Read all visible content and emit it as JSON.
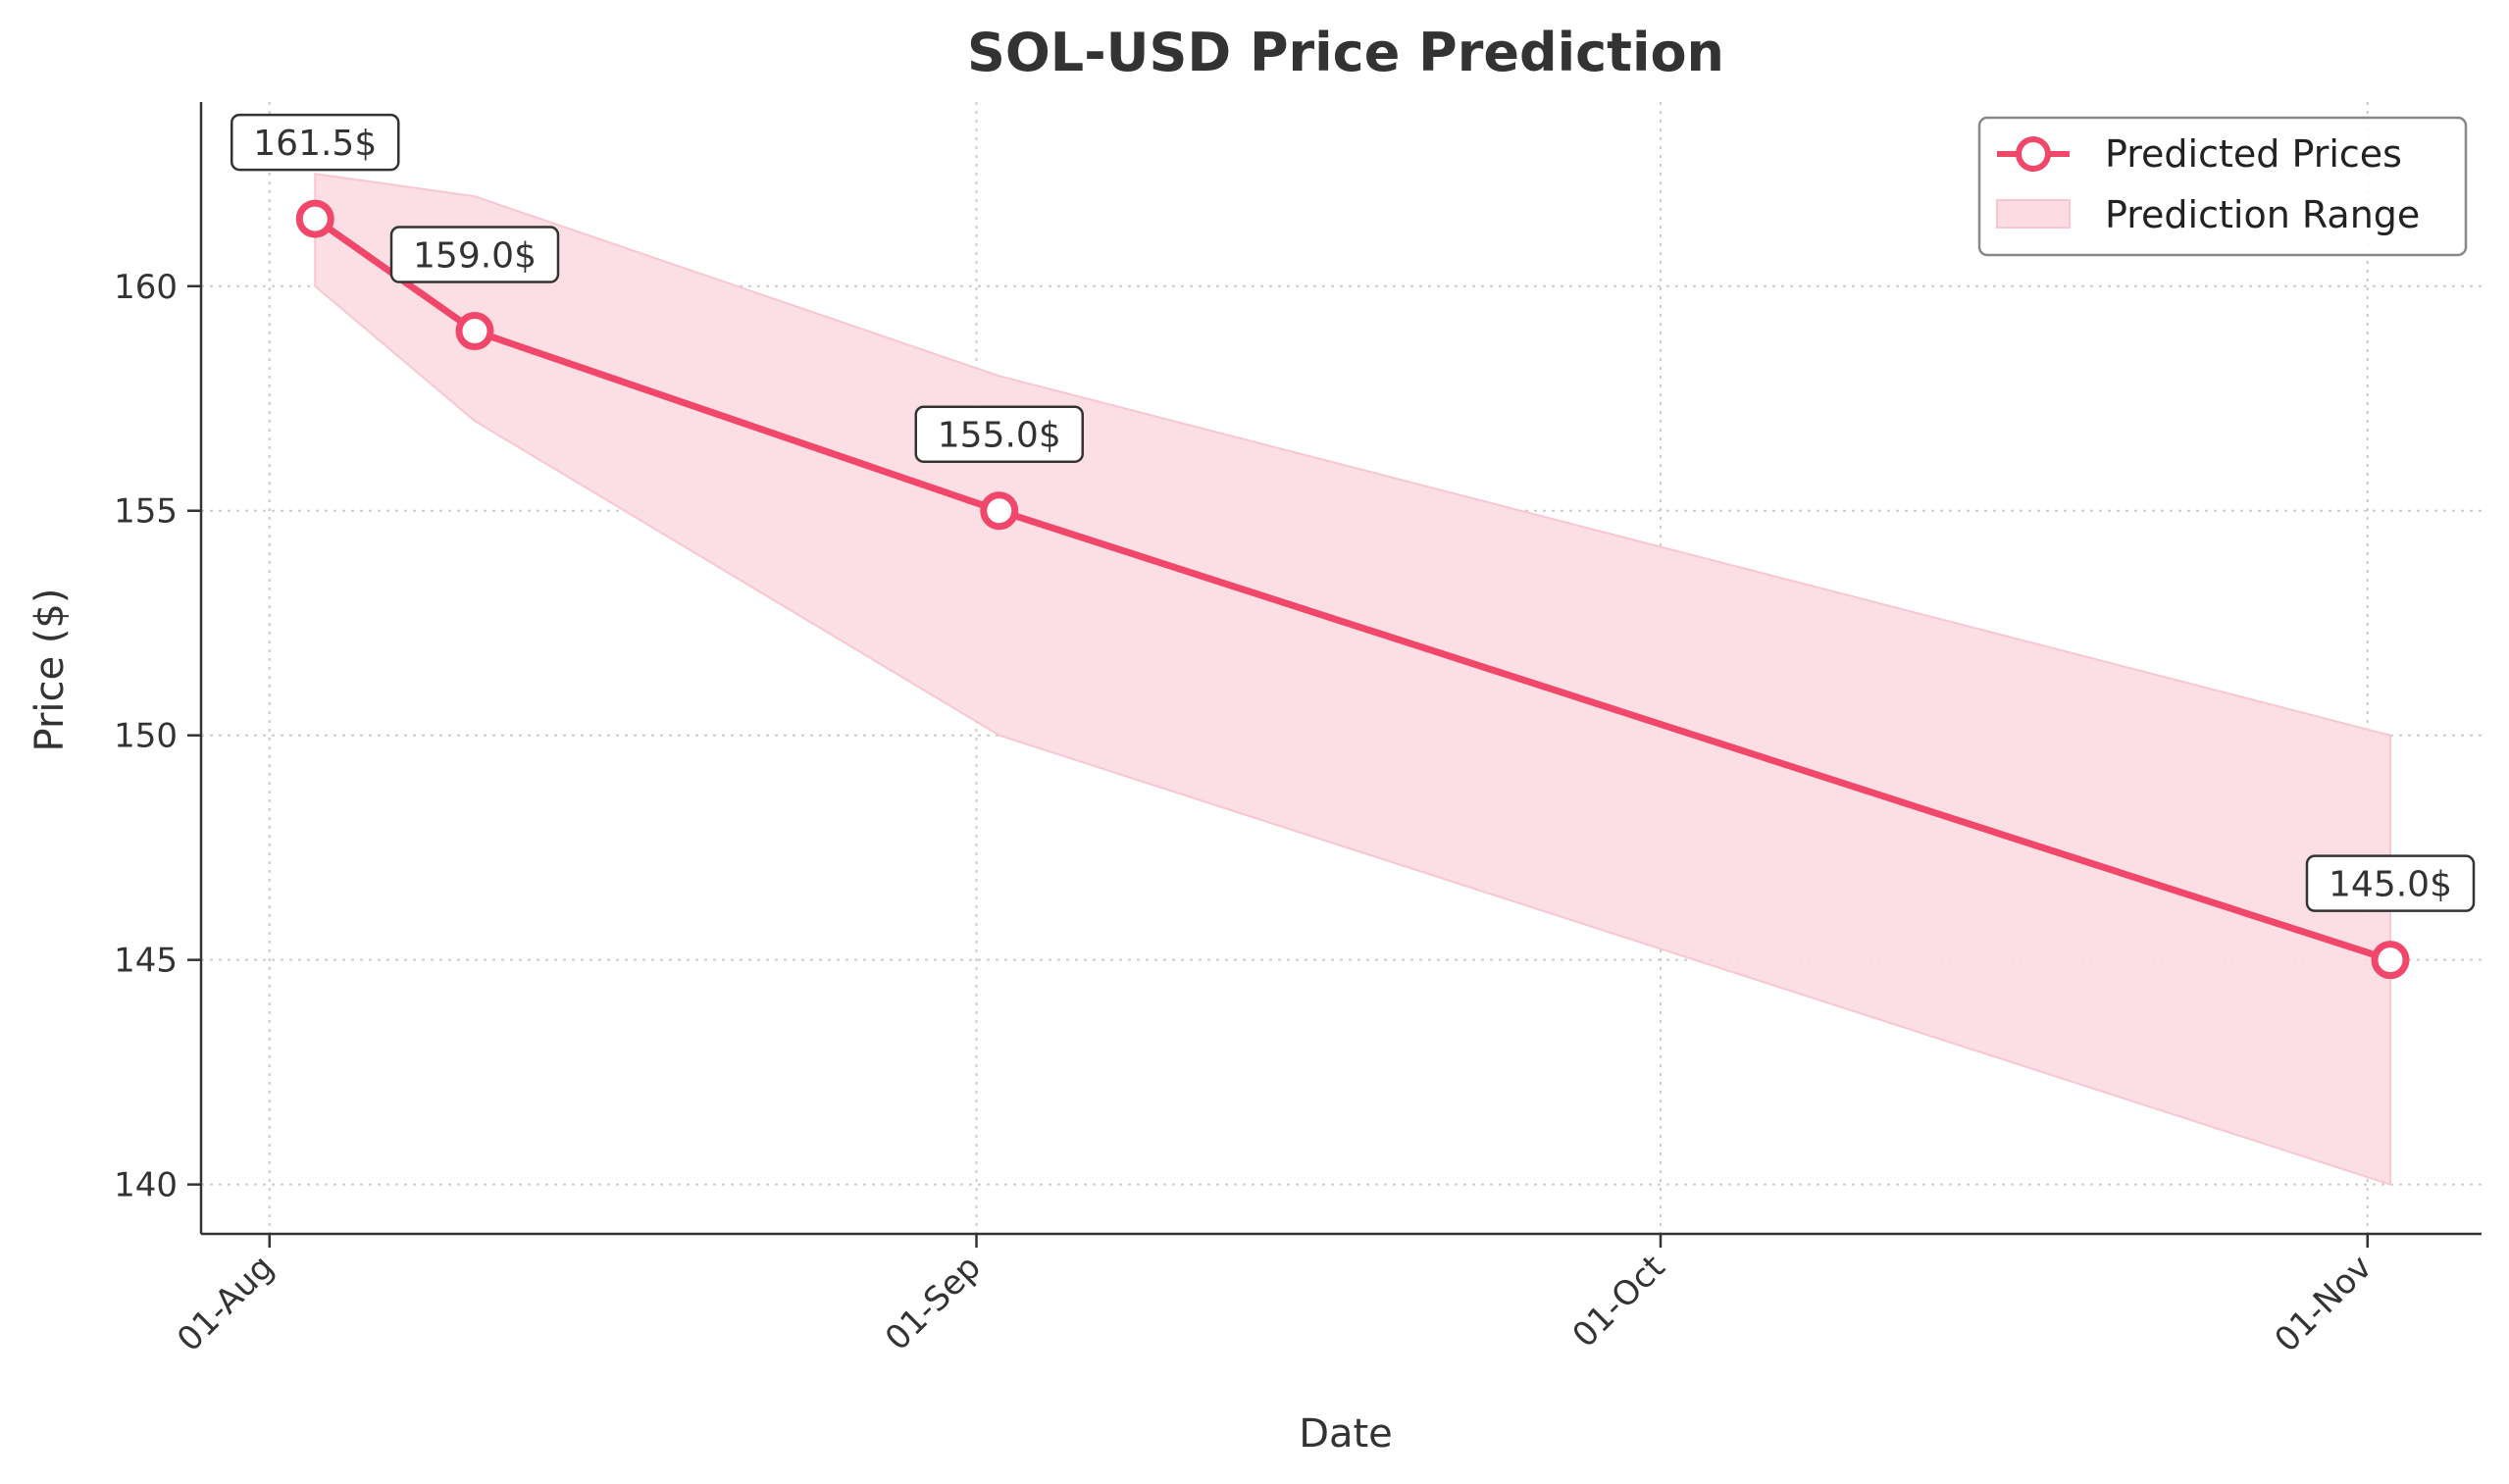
{
  "chart_data": {
    "type": "line",
    "title": "SOL-USD Price Prediction",
    "xlabel": "Date",
    "ylabel": "Price ($)",
    "x_ticks": [
      {
        "date": "2024-08-01",
        "label": "01-Aug"
      },
      {
        "date": "2024-09-01",
        "label": "01-Sep"
      },
      {
        "date": "2024-10-01",
        "label": "01-Oct"
      },
      {
        "date": "2024-11-01",
        "label": "01-Nov"
      }
    ],
    "y_ticks": [
      140,
      145,
      150,
      155,
      160
    ],
    "xlim": [
      "2024-07-29",
      "2024-11-06"
    ],
    "ylim": [
      138.9,
      164.1
    ],
    "grid": true,
    "legend_position": "top-right",
    "series": [
      {
        "name": "Predicted Prices",
        "kind": "line",
        "color": "#f0476a",
        "points": [
          {
            "x": "2024-08-03",
            "y": 161.5,
            "label": "161.5$"
          },
          {
            "x": "2024-08-10",
            "y": 159.0,
            "label": "159.0$"
          },
          {
            "x": "2024-09-02",
            "y": 155.0,
            "label": "155.0$"
          },
          {
            "x": "2024-11-02",
            "y": 145.0,
            "label": "145.0$"
          }
        ]
      },
      {
        "name": "Prediction Range",
        "kind": "band",
        "color": "#fcdbe2",
        "points": [
          {
            "x": "2024-08-03",
            "low": 160.0,
            "high": 162.5
          },
          {
            "x": "2024-08-10",
            "low": 157.0,
            "high": 162.0
          },
          {
            "x": "2024-09-02",
            "low": 150.0,
            "high": 158.0
          },
          {
            "x": "2024-11-02",
            "low": 140.0,
            "high": 150.0
          }
        ]
      }
    ]
  }
}
